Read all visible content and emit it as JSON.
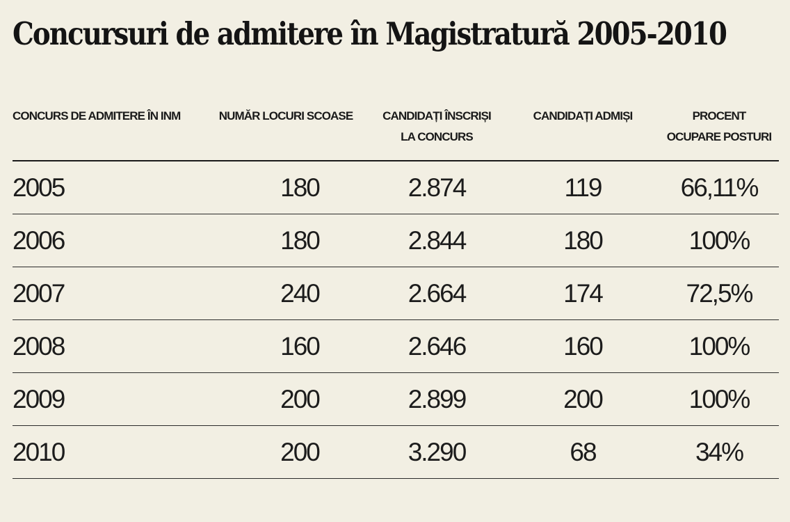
{
  "title": "Concursuri de admitere în Magistratură 2005-2010",
  "chart_data": {
    "type": "table",
    "columns": [
      {
        "lines": [
          "CONCURS DE ADMITERE ÎN INM"
        ]
      },
      {
        "lines": [
          "NUMĂR LOCURI SCOASE"
        ]
      },
      {
        "lines": [
          "CANDIDAȚI ÎNSCRIȘI",
          "LA CONCURS"
        ]
      },
      {
        "lines": [
          "CANDIDAȚI ADMIȘI"
        ]
      },
      {
        "lines": [
          "PROCENT",
          "OCUPARE POSTURI"
        ]
      }
    ],
    "rows": [
      {
        "year": "2005",
        "locuri": "180",
        "inscrisi": "2.874",
        "admisi": "119",
        "procent": "66,11%"
      },
      {
        "year": "2006",
        "locuri": "180",
        "inscrisi": "2.844",
        "admisi": "180",
        "procent": "100%"
      },
      {
        "year": "2007",
        "locuri": "240",
        "inscrisi": "2.664",
        "admisi": "174",
        "procent": "72,5%"
      },
      {
        "year": "2008",
        "locuri": "160",
        "inscrisi": "2.646",
        "admisi": "160",
        "procent": "100%"
      },
      {
        "year": "2009",
        "locuri": "200",
        "inscrisi": "2.899",
        "admisi": "200",
        "procent": "100%"
      },
      {
        "year": "2010",
        "locuri": "200",
        "inscrisi": "3.290",
        "admisi": "68",
        "procent": "34%"
      }
    ]
  }
}
